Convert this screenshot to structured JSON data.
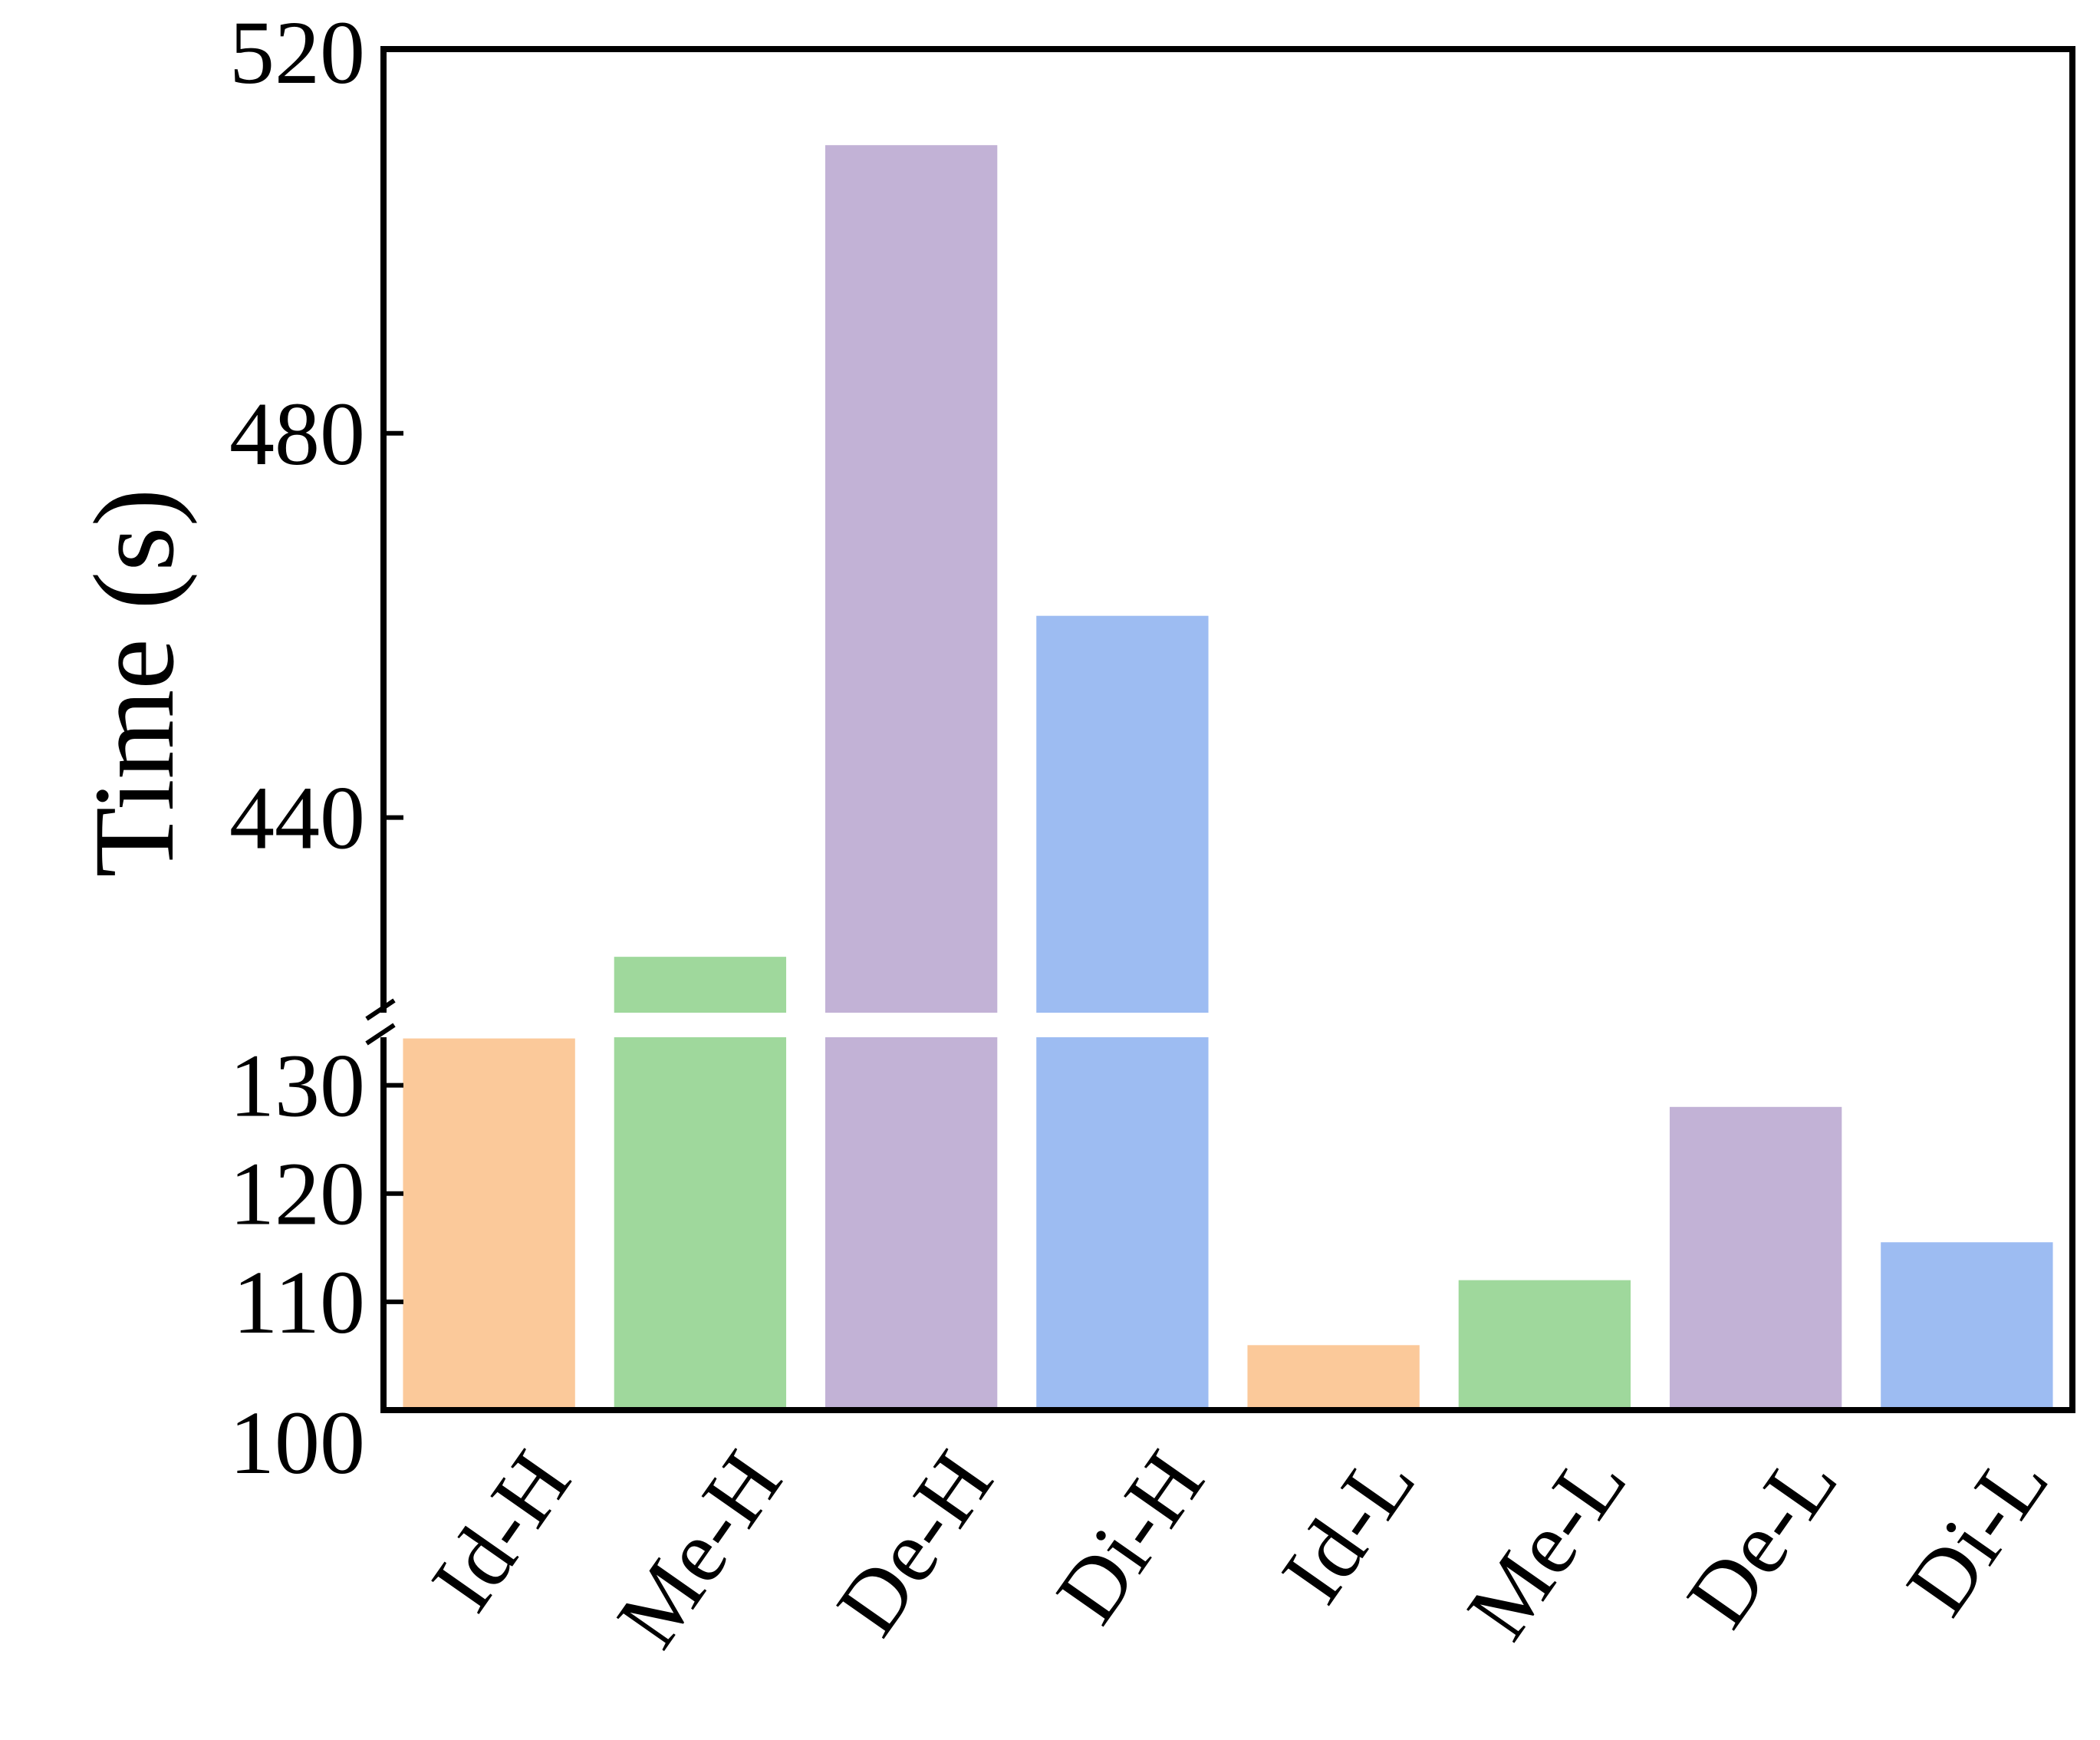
{
  "chart_data": {
    "type": "bar",
    "categories": [
      "Id-H",
      "Me-H",
      "De-H",
      "Di-H",
      "Id-L",
      "Me-L",
      "De-L",
      "Di-L"
    ],
    "values": [
      417,
      425.5,
      510,
      461,
      106,
      112,
      128,
      115.5
    ],
    "colors": [
      "#fbc99a",
      "#9fd89c",
      "#c2b2d6",
      "#9dbcf2",
      "#fbc99a",
      "#9fd89c",
      "#c2b2d6",
      "#9dbcf2"
    ],
    "ylabel": "Time (s)",
    "xlabel": "",
    "title": "",
    "broken_y_axis": true,
    "upper_segment": {
      "ylim": [
        420,
        520
      ],
      "ticks": [
        440,
        480,
        520
      ]
    },
    "lower_segment": {
      "ylim": [
        100,
        135
      ],
      "ticks": [
        100,
        110,
        120,
        130
      ]
    },
    "tick_labels": {
      "100": "100",
      "110": "110",
      "120": "120",
      "130": "130",
      "440": "440",
      "480": "480",
      "520": "520"
    },
    "legend": "none",
    "grid": false
  }
}
